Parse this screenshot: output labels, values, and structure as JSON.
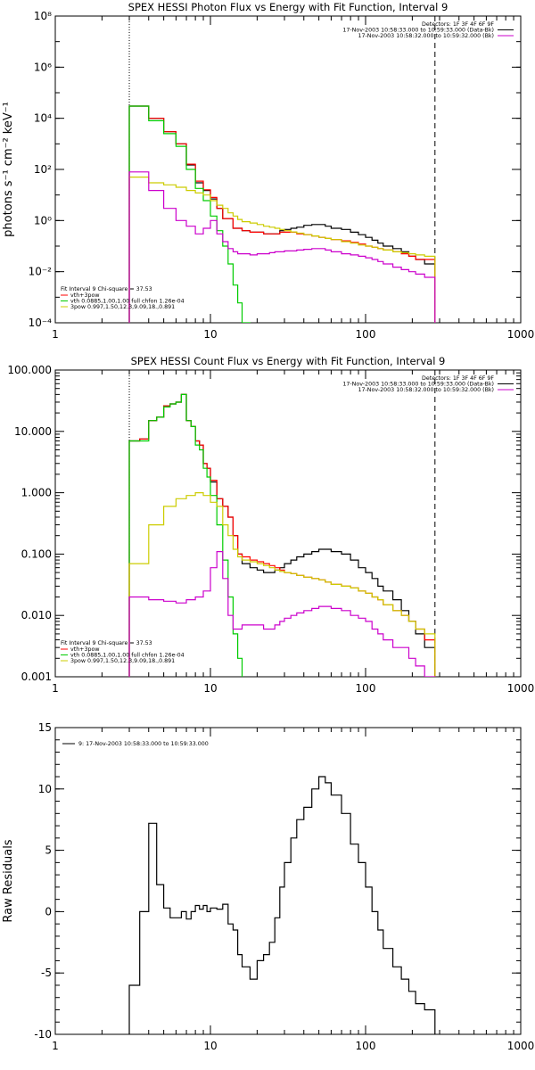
{
  "chart_data": [
    {
      "type": "line",
      "title": "SPEX HESSI Photon Flux vs Energy with Fit Function, Interval 9",
      "ylabel": "photons s⁻¹ cm⁻² keV⁻¹",
      "xlabel": "",
      "xscale": "log",
      "yscale": "log",
      "xlim": [
        1,
        1000
      ],
      "ylim": [
        0.0001,
        100000000
      ],
      "x_ticks": [
        1,
        10,
        100,
        1000
      ],
      "x_tick_labels": [
        "1",
        "10",
        "100",
        "1000"
      ],
      "y_ticks": [
        0.0001,
        0.01,
        1,
        100,
        10000,
        1000000
      ],
      "y_tick_labels": [
        "10⁻⁴",
        "10⁻²",
        "10⁰",
        "10²",
        "10⁴",
        "10⁶"
      ],
      "y_top_label": "10⁸",
      "vlines": [
        {
          "x": 3,
          "style": "dotted"
        },
        {
          "x": 280,
          "style": "dashed"
        }
      ],
      "legend_right": [
        "Detectors: 1F 3F 4F 6F 9F",
        "17-Nov-2003 10:58:33.000 to 10:59:33.000 (Data-Bk)",
        "17-Nov-2003 10:58:32.000 to 10:59:32.000 (Bk)"
      ],
      "legend_right_colors": [
        "#000000",
        "#cc00cc"
      ],
      "fit_header": "Fit Interval 9   Chi-square = 37.53",
      "legend_left": [
        "vth+3pow",
        "vth 0.0885,1.00,1.00  full chfon 1.26e-04",
        "3pow 0.997,1.50,12.3,9.09,18.,0.891"
      ],
      "legend_left_colors": [
        "#ff0000",
        "#00cc00",
        "#cccc00"
      ],
      "bin_edges": [
        3,
        3.5,
        4,
        4.5,
        5,
        5.5,
        6,
        6.5,
        7,
        7.5,
        8,
        8.5,
        9,
        9.5,
        10,
        11,
        12,
        13,
        14,
        15,
        16,
        18,
        20,
        22,
        24,
        26,
        28,
        30,
        33,
        36,
        40,
        45,
        50,
        55,
        60,
        70,
        80,
        90,
        100,
        110,
        120,
        130,
        150,
        170,
        190,
        210,
        240,
        280
      ],
      "series": [
        {
          "color": "#000000",
          "values": [
            30000,
            30000,
            10000,
            10000,
            3000,
            3000,
            1000,
            1000,
            150,
            150,
            30,
            30,
            15,
            15,
            7,
            3,
            1.2,
            1.2,
            0.5,
            0.5,
            0.4,
            0.35,
            0.35,
            0.3,
            0.3,
            0.3,
            0.4,
            0.45,
            0.5,
            0.55,
            0.65,
            0.7,
            0.7,
            0.6,
            0.5,
            0.45,
            0.35,
            0.28,
            0.22,
            0.17,
            0.13,
            0.1,
            0.08,
            0.06,
            0.04,
            0.03,
            0.02
          ]
        },
        {
          "color": "#ff0000",
          "values": [
            30000,
            30000,
            10000,
            10000,
            3000,
            3000,
            1000,
            1000,
            160,
            160,
            35,
            35,
            16,
            16,
            8,
            3,
            1.2,
            1.2,
            0.5,
            0.5,
            0.4,
            0.35,
            0.35,
            0.3,
            0.3,
            0.3,
            0.35,
            0.35,
            0.35,
            0.3,
            0.28,
            0.25,
            0.22,
            0.2,
            0.18,
            0.16,
            0.14,
            0.12,
            0.1,
            0.09,
            0.08,
            0.07,
            0.06,
            0.05,
            0.04,
            0.03,
            0.03
          ]
        },
        {
          "color": "#00cc00",
          "values": [
            30000,
            30000,
            8000,
            8000,
            2500,
            2500,
            800,
            800,
            100,
            100,
            18,
            18,
            6,
            6,
            1.5,
            0.4,
            0.1,
            0.02,
            0.003,
            0.0006,
            0.0001
          ]
        },
        {
          "color": "#cccc00",
          "values": [
            50,
            50,
            30,
            30,
            25,
            25,
            20,
            20,
            15,
            15,
            12,
            12,
            10,
            10,
            6,
            4,
            3,
            2,
            1.5,
            1.1,
            0.9,
            0.8,
            0.7,
            0.6,
            0.55,
            0.5,
            0.45,
            0.4,
            0.36,
            0.32,
            0.28,
            0.25,
            0.22,
            0.2,
            0.18,
            0.15,
            0.13,
            0.11,
            0.1,
            0.09,
            0.08,
            0.07,
            0.06,
            0.055,
            0.05,
            0.045,
            0.04
          ]
        },
        {
          "color": "#cc00cc",
          "values": [
            80,
            80,
            15,
            15,
            3,
            3,
            1,
            1,
            0.6,
            0.6,
            0.3,
            0.3,
            0.5,
            0.5,
            1,
            0.3,
            0.15,
            0.08,
            0.06,
            0.05,
            0.05,
            0.045,
            0.05,
            0.05,
            0.055,
            0.06,
            0.06,
            0.065,
            0.065,
            0.07,
            0.075,
            0.08,
            0.08,
            0.07,
            0.06,
            0.05,
            0.045,
            0.04,
            0.035,
            0.03,
            0.025,
            0.02,
            0.015,
            0.012,
            0.01,
            0.008,
            0.006
          ]
        }
      ]
    },
    {
      "type": "line",
      "title": "SPEX HESSI Count Flux vs Energy with Fit Function, Interval 9",
      "ylabel": "",
      "xlabel": "",
      "xscale": "log",
      "yscale": "log",
      "xlim": [
        1,
        1000
      ],
      "ylim": [
        0.001,
        100
      ],
      "x_ticks": [
        1,
        10,
        100,
        1000
      ],
      "x_tick_labels": [
        "1",
        "10",
        "100",
        "1000"
      ],
      "y_ticks": [
        0.001,
        0.01,
        0.1,
        1,
        10,
        100
      ],
      "y_tick_labels": [
        "0.001",
        "0.010",
        "0.100",
        "1.000",
        "10.000",
        "100.000"
      ],
      "vlines": [
        {
          "x": 3,
          "style": "dotted"
        },
        {
          "x": 280,
          "style": "dashed"
        }
      ],
      "legend_right": [
        "Detectors: 1F 3F 4F 6F 9F",
        "17-Nov-2003 10:58:33.000 to 10:59:33.000 (Data-Bk)",
        "17-Nov-2003 10:58:32.000 to 10:59:32.000 (Bk)"
      ],
      "legend_right_colors": [
        "#000000",
        "#cc00cc"
      ],
      "fit_header": "Fit Interval 9   Chi-square = 37.53",
      "legend_left": [
        "vth+3pow",
        "vth 0.0885,1.00,1.00  full chfon 1.26e-04",
        "3pow 0.997,1.50,12.3,9.09,18.,0.891"
      ],
      "legend_left_colors": [
        "#ff0000",
        "#00cc00",
        "#cccc00"
      ],
      "bin_edges": [
        3,
        3.5,
        4,
        4.5,
        5,
        5.5,
        6,
        6.5,
        7,
        7.5,
        8,
        8.5,
        9,
        9.5,
        10,
        11,
        12,
        13,
        14,
        15,
        16,
        18,
        20,
        22,
        24,
        26,
        28,
        30,
        33,
        36,
        40,
        45,
        50,
        55,
        60,
        70,
        80,
        90,
        100,
        110,
        120,
        130,
        150,
        170,
        190,
        210,
        240,
        280
      ],
      "series": [
        {
          "color": "#000000",
          "values": [
            7,
            7.5,
            15,
            17,
            26,
            28,
            30,
            40,
            15,
            12,
            7,
            6,
            3,
            2.5,
            1.5,
            0.8,
            0.6,
            0.4,
            0.2,
            0.1,
            0.07,
            0.06,
            0.055,
            0.05,
            0.05,
            0.055,
            0.06,
            0.07,
            0.08,
            0.09,
            0.1,
            0.11,
            0.12,
            0.12,
            0.11,
            0.1,
            0.08,
            0.06,
            0.05,
            0.04,
            0.03,
            0.025,
            0.018,
            0.012,
            0.008,
            0.005,
            0.003
          ]
        },
        {
          "color": "#ff0000",
          "values": [
            7,
            7.5,
            15,
            17,
            26,
            28,
            30,
            40,
            15,
            12,
            7,
            6,
            3,
            2.5,
            1.6,
            0.8,
            0.6,
            0.4,
            0.2,
            0.1,
            0.09,
            0.08,
            0.075,
            0.07,
            0.065,
            0.06,
            0.055,
            0.05,
            0.048,
            0.045,
            0.042,
            0.04,
            0.038,
            0.035,
            0.032,
            0.03,
            0.028,
            0.025,
            0.023,
            0.02,
            0.018,
            0.015,
            0.012,
            0.01,
            0.008,
            0.006,
            0.004
          ]
        },
        {
          "color": "#00cc00",
          "values": [
            7,
            7,
            15,
            17,
            25,
            28,
            30,
            40,
            15,
            12,
            6,
            5,
            2.5,
            1.8,
            0.9,
            0.3,
            0.08,
            0.02,
            0.005,
            0.002,
            0.0009
          ]
        },
        {
          "color": "#cccc00",
          "values": [
            0.07,
            0.07,
            0.3,
            0.3,
            0.6,
            0.6,
            0.8,
            0.8,
            0.9,
            0.9,
            1,
            1,
            0.9,
            0.9,
            0.7,
            0.6,
            0.3,
            0.2,
            0.12,
            0.09,
            0.08,
            0.075,
            0.07,
            0.065,
            0.06,
            0.055,
            0.052,
            0.05,
            0.048,
            0.045,
            0.042,
            0.04,
            0.038,
            0.035,
            0.032,
            0.03,
            0.028,
            0.025,
            0.023,
            0.02,
            0.018,
            0.015,
            0.012,
            0.01,
            0.008,
            0.006,
            0.005
          ]
        },
        {
          "color": "#cc00cc",
          "values": [
            0.02,
            0.02,
            0.018,
            0.018,
            0.017,
            0.017,
            0.016,
            0.016,
            0.018,
            0.018,
            0.02,
            0.02,
            0.025,
            0.025,
            0.06,
            0.11,
            0.04,
            0.01,
            0.006,
            0.006,
            0.007,
            0.007,
            0.007,
            0.006,
            0.006,
            0.007,
            0.008,
            0.009,
            0.01,
            0.011,
            0.012,
            0.013,
            0.014,
            0.014,
            0.013,
            0.012,
            0.01,
            0.009,
            0.008,
            0.006,
            0.005,
            0.004,
            0.003,
            0.003,
            0.002,
            0.0015,
            0.001
          ]
        }
      ]
    },
    {
      "type": "line",
      "title": "",
      "ylabel": "Raw Residuals",
      "xlabel": "",
      "xscale": "log",
      "yscale": "linear",
      "xlim": [
        1,
        1000
      ],
      "ylim": [
        -10,
        15
      ],
      "x_ticks": [
        1,
        10,
        100,
        1000
      ],
      "x_tick_labels": [
        "1",
        "10",
        "100",
        "1000"
      ],
      "y_ticks": [
        -10,
        -5,
        0,
        5,
        10,
        15
      ],
      "y_tick_labels": [
        "-10",
        "-5",
        "0",
        "5",
        "10",
        "15"
      ],
      "legend": "9: 17-Nov-2003 10:58:33.000 to 10:59:33.000",
      "legend_color": "#000000",
      "bin_edges": [
        3,
        3.5,
        4,
        4.5,
        5,
        5.5,
        6,
        6.5,
        7,
        7.5,
        8,
        8.5,
        9,
        9.5,
        10,
        11,
        12,
        13,
        14,
        15,
        16,
        18,
        20,
        22,
        24,
        26,
        28,
        30,
        33,
        36,
        40,
        45,
        50,
        55,
        60,
        70,
        80,
        90,
        100,
        110,
        120,
        130,
        150,
        170,
        190,
        210,
        240,
        280
      ],
      "series": [
        {
          "color": "#000000",
          "values": [
            -6,
            0,
            7.2,
            2.2,
            0.3,
            -0.5,
            -0.5,
            0,
            -0.6,
            0,
            0.5,
            0.2,
            0.5,
            0,
            0.3,
            0.2,
            0.6,
            -1,
            -1.5,
            -3.5,
            -4.5,
            -5.5,
            -4,
            -3.5,
            -2.5,
            -0.5,
            2,
            4,
            6,
            7.5,
            8.5,
            10,
            11,
            10.5,
            9.5,
            8,
            5.5,
            4,
            2,
            0,
            -1.5,
            -3,
            -4.5,
            -5.5,
            -6.5,
            -7.5,
            -8
          ]
        }
      ]
    }
  ]
}
